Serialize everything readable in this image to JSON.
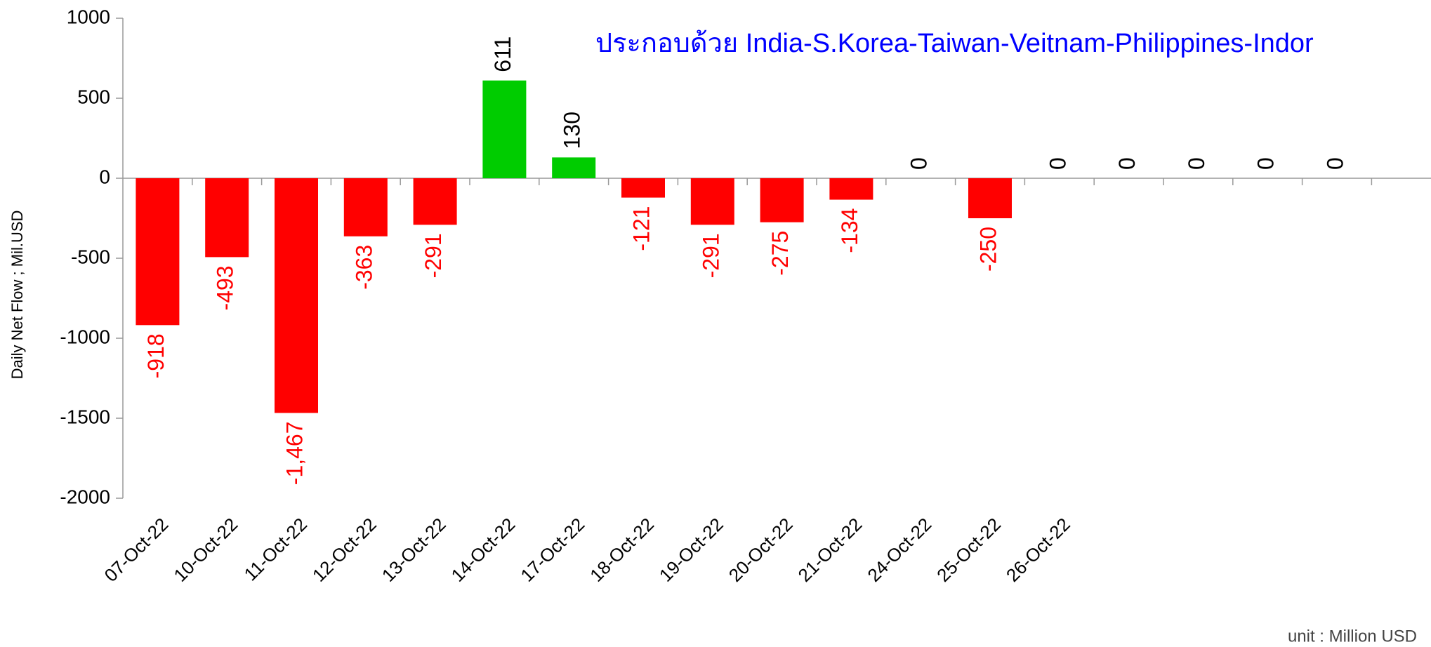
{
  "chart_data": {
    "type": "bar",
    "subtitle": "ประกอบด้วย India-S.Korea-Taiwan-Veitnam-Philippines-Indor",
    "y_axis_label": "Daily Net Flow ; Mil.USD",
    "annotation": "unit : Million USD",
    "categories": [
      "07-Oct-22",
      "10-Oct-22",
      "11-Oct-22",
      "12-Oct-22",
      "13-Oct-22",
      "14-Oct-22",
      "17-Oct-22",
      "18-Oct-22",
      "19-Oct-22",
      "20-Oct-22",
      "21-Oct-22",
      "24-Oct-22",
      "25-Oct-22",
      "26-Oct-22",
      null,
      null,
      null,
      null
    ],
    "values": [
      -918,
      -493,
      -1467,
      -363,
      -291,
      611,
      130,
      -121,
      -291,
      -275,
      -134,
      0,
      -250,
      0,
      0,
      0,
      0,
      0
    ],
    "value_labels": [
      "-918",
      "-493",
      "-1,467",
      "-363",
      "-291",
      "611",
      "130",
      "-121",
      "-291",
      "-275",
      "-134",
      "0",
      "-250",
      "0",
      "0",
      "0",
      "0",
      "0"
    ],
    "colors": [
      "#ff0000",
      "#ff0000",
      "#ff0000",
      "#ff0000",
      "#ff0000",
      "#00cc00",
      "#00cc00",
      "#ff0000",
      "#ff0000",
      "#ff0000",
      "#ff0000",
      "#ff0000",
      "#ff0000",
      "#ff0000",
      "#ff0000",
      "#ff0000",
      "#ff0000",
      "#ff0000"
    ],
    "ylim": [
      -2000,
      1000
    ],
    "yticks": [
      -2000,
      -1500,
      -1000,
      -500,
      0,
      500,
      1000
    ]
  }
}
